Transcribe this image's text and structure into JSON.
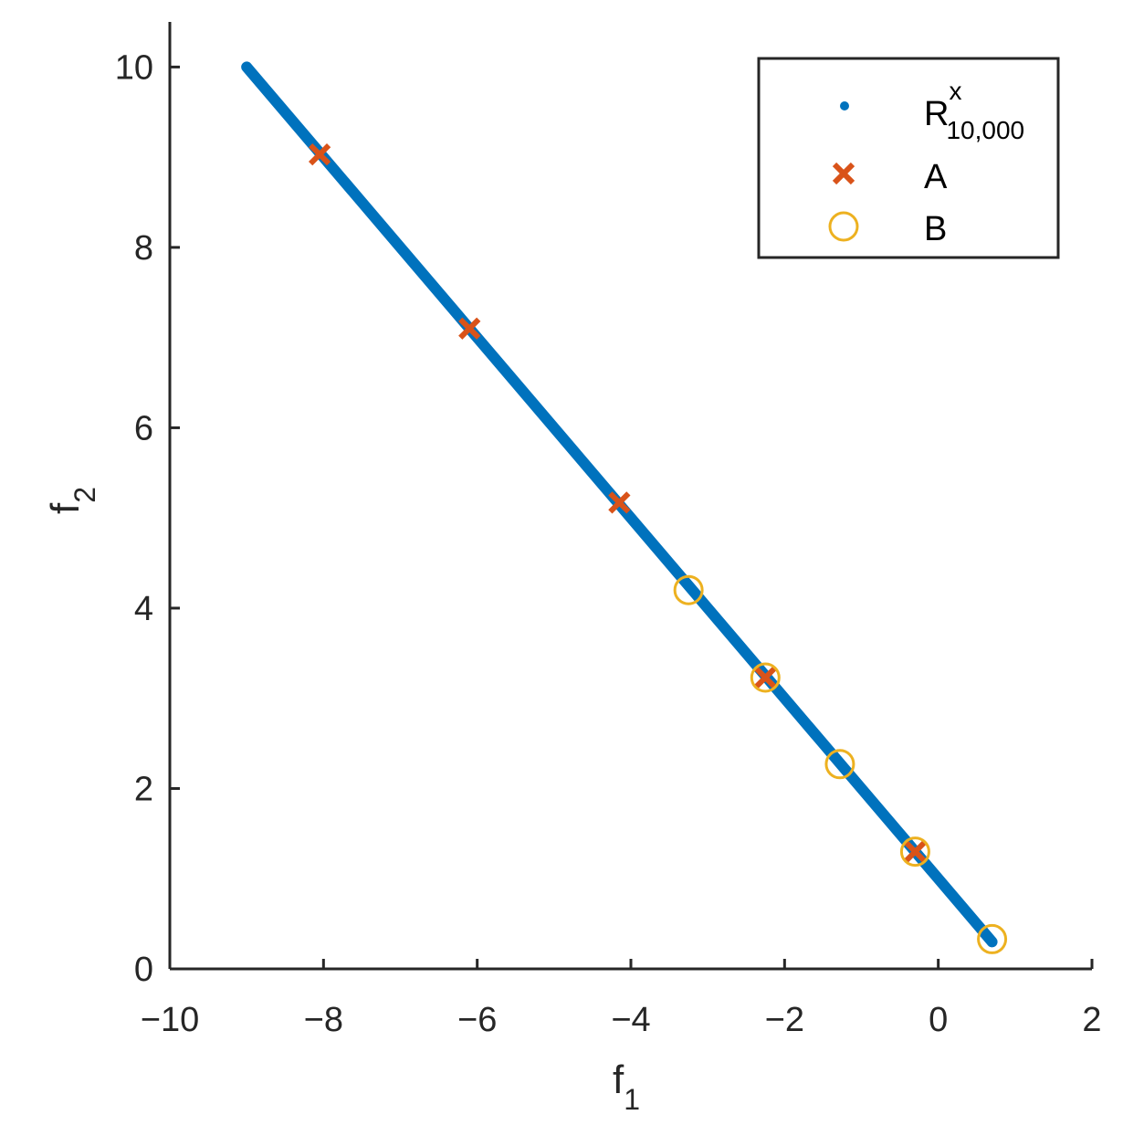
{
  "chart_data": {
    "type": "scatter",
    "xlabel": {
      "base": "f",
      "sub": "1"
    },
    "ylabel": {
      "base": "f",
      "sub": "2"
    },
    "xlim": [
      -10,
      2
    ],
    "ylim": [
      0,
      10.5
    ],
    "xticks": [
      -10,
      -8,
      -6,
      -4,
      -2,
      0,
      2
    ],
    "yticks": [
      0,
      2,
      4,
      6,
      8,
      10
    ],
    "xtick_labels": [
      "−10",
      "−8",
      "−6",
      "−4",
      "−2",
      "0",
      "2"
    ],
    "ytick_labels": [
      "0",
      "2",
      "4",
      "6",
      "8",
      "10"
    ],
    "grid": false,
    "legend_position": "top-right",
    "series": [
      {
        "legend_base": "R",
        "legend_sup": "x",
        "legend_sub": "10,000",
        "marker": "dot",
        "color": "#0072BD",
        "x_range": [
          -9.0,
          0.7
        ],
        "y_range": [
          10.0,
          0.3
        ]
      },
      {
        "name": "A",
        "marker": "x",
        "color": "#D95319",
        "x": [
          -8.05,
          -6.1,
          -4.15,
          -2.25,
          -0.3
        ],
        "y": [
          9.03,
          7.1,
          5.17,
          3.23,
          1.3
        ]
      },
      {
        "name": "B",
        "marker": "circle",
        "color": "#EDB120",
        "x": [
          -3.25,
          -2.25,
          -1.28,
          -0.3,
          0.7
        ],
        "y": [
          4.2,
          3.23,
          2.27,
          1.3,
          0.33
        ]
      }
    ]
  }
}
